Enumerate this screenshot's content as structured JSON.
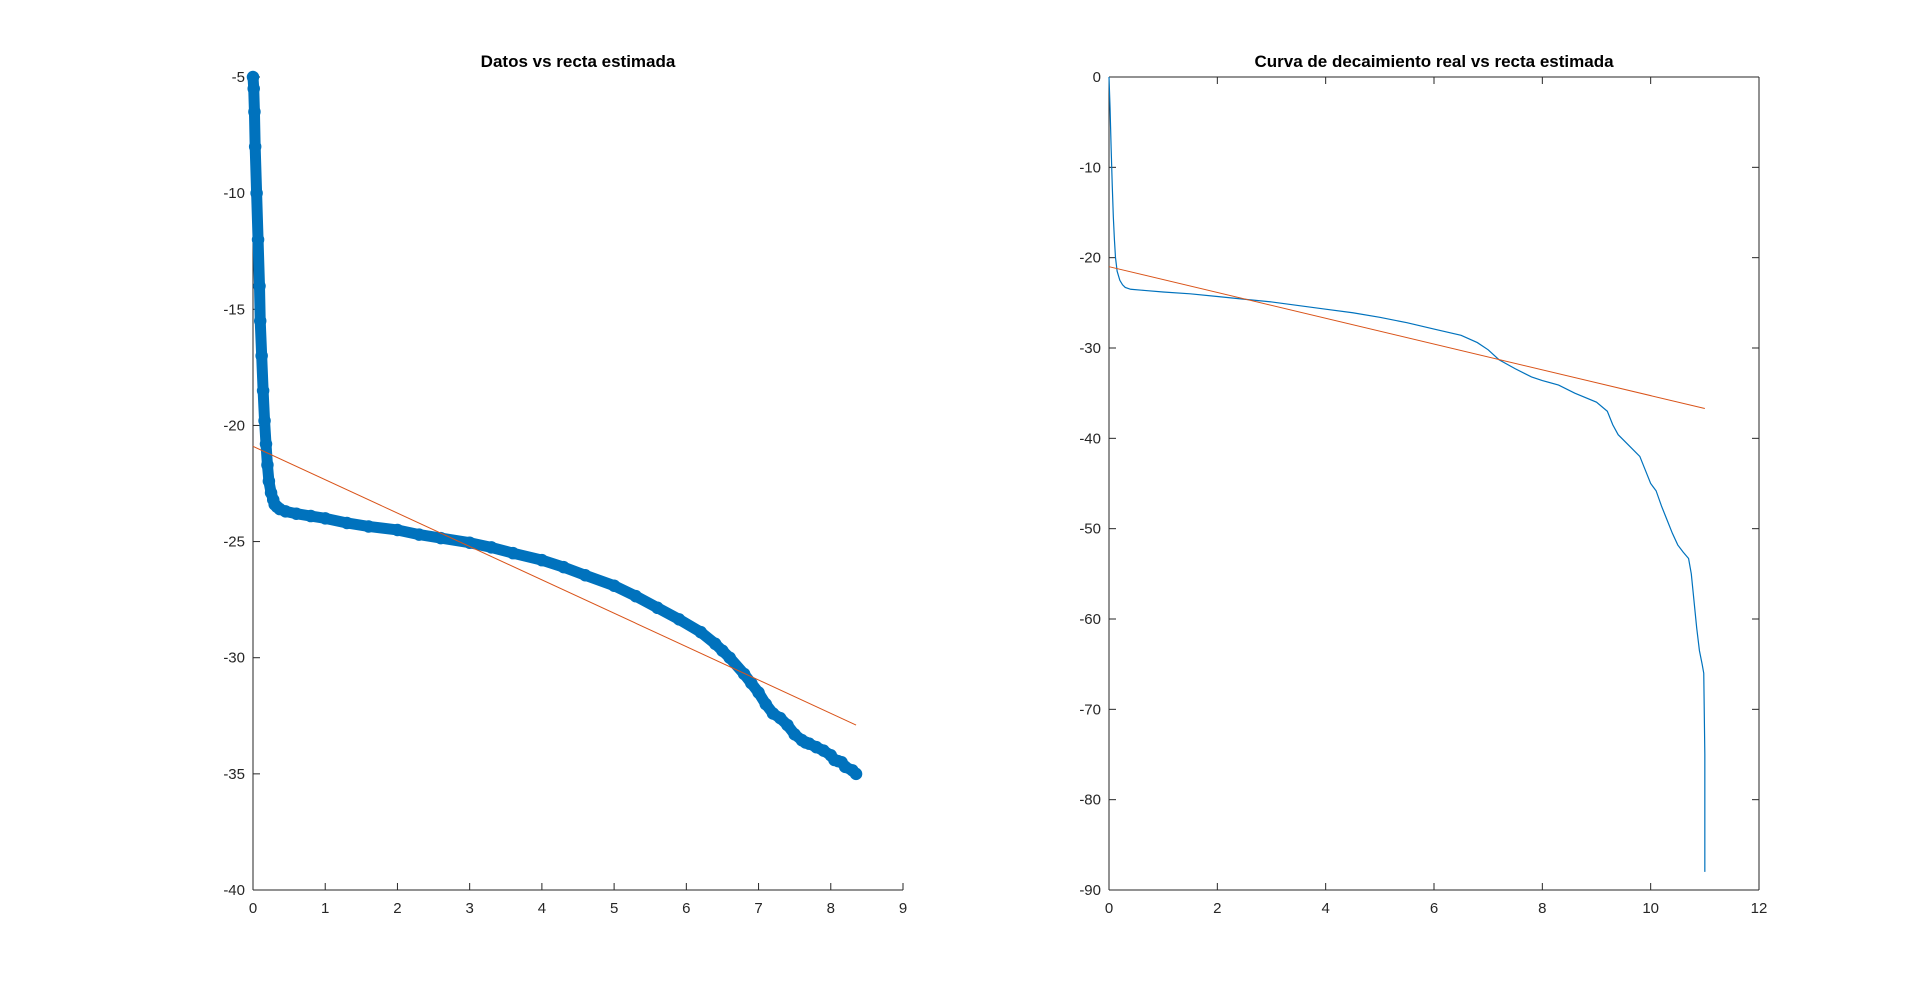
{
  "chart_data": [
    {
      "type": "scatter",
      "title": "Datos vs recta estimada",
      "xlabel": "",
      "ylabel": "",
      "xlim": [
        0,
        9
      ],
      "ylim": [
        -40,
        -5
      ],
      "xticks": [
        "0",
        "1",
        "2",
        "3",
        "4",
        "5",
        "6",
        "7",
        "8",
        "9"
      ],
      "yticks": [
        "-40",
        "-35",
        "-30",
        "-25",
        "-20",
        "-15",
        "-10",
        "-5"
      ],
      "box": false,
      "grid": false,
      "colors": {
        "data": "#0072BD",
        "fit": "#D95319"
      },
      "series": [
        {
          "kind": "markers",
          "x": [
            0.0,
            0.01,
            0.02,
            0.03,
            0.05,
            0.07,
            0.09,
            0.1,
            0.12,
            0.14,
            0.16,
            0.18,
            0.2,
            0.22,
            0.25,
            0.28,
            0.3,
            0.33,
            0.37,
            0.45,
            0.6,
            0.8,
            1.0,
            1.3,
            1.6,
            2.0,
            2.3,
            2.6,
            3.0,
            3.3,
            3.6,
            4.0,
            4.3,
            4.6,
            5.0,
            5.3,
            5.6,
            5.9,
            6.2,
            6.4,
            6.5,
            6.6,
            6.8,
            6.9,
            7.0,
            7.1,
            7.2,
            7.3,
            7.4,
            7.5,
            7.6,
            7.65,
            7.7,
            7.8,
            7.9,
            8.0,
            8.05,
            8.1,
            8.15,
            8.2,
            8.3,
            8.35
          ],
          "y": [
            -5.0,
            -5.5,
            -6.5,
            -8.0,
            -10.0,
            -12.0,
            -14.0,
            -15.5,
            -17.0,
            -18.5,
            -19.8,
            -20.8,
            -21.7,
            -22.4,
            -22.9,
            -23.2,
            -23.4,
            -23.5,
            -23.6,
            -23.7,
            -23.8,
            -23.9,
            -24.0,
            -24.2,
            -24.35,
            -24.5,
            -24.7,
            -24.85,
            -25.05,
            -25.25,
            -25.5,
            -25.8,
            -26.1,
            -26.45,
            -26.9,
            -27.35,
            -27.85,
            -28.35,
            -28.9,
            -29.4,
            -29.7,
            -30.0,
            -30.7,
            -31.1,
            -31.5,
            -32.0,
            -32.4,
            -32.6,
            -32.9,
            -33.3,
            -33.55,
            -33.65,
            -33.7,
            -33.85,
            -34.0,
            -34.2,
            -34.4,
            -34.45,
            -34.5,
            -34.7,
            -34.85,
            -35.0
          ]
        },
        {
          "kind": "line",
          "x": [
            0.0,
            8.35
          ],
          "y": [
            -20.9,
            -32.9
          ]
        }
      ]
    },
    {
      "type": "line",
      "title": "Curva de decaimiento real vs recta estimada",
      "xlabel": "",
      "ylabel": "",
      "xlim": [
        0,
        12
      ],
      "ylim": [
        -90,
        0
      ],
      "xticks": [
        "0",
        "2",
        "4",
        "6",
        "8",
        "10",
        "12"
      ],
      "yticks": [
        "-90",
        "-80",
        "-70",
        "-60",
        "-50",
        "-40",
        "-30",
        "-20",
        "-10",
        "0"
      ],
      "box": true,
      "grid": false,
      "colors": {
        "data": "#0072BD",
        "fit": "#D95319"
      },
      "series": [
        {
          "kind": "line",
          "x": [
            0.0,
            0.02,
            0.04,
            0.06,
            0.08,
            0.1,
            0.12,
            0.15,
            0.2,
            0.25,
            0.3,
            0.4,
            0.6,
            1.0,
            1.5,
            2.0,
            2.5,
            3.0,
            3.5,
            4.0,
            4.5,
            5.0,
            5.5,
            6.0,
            6.5,
            6.8,
            7.0,
            7.2,
            7.5,
            7.8,
            8.0,
            8.3,
            8.6,
            9.0,
            9.2,
            9.3,
            9.4,
            9.6,
            9.8,
            9.9,
            10.0,
            10.1,
            10.2,
            10.3,
            10.4,
            10.5,
            10.6,
            10.7,
            10.75,
            10.8,
            10.85,
            10.9,
            10.95,
            10.98,
            11.0,
            11.0
          ],
          "y": [
            0.0,
            -3.5,
            -8.0,
            -12.0,
            -15.5,
            -18.0,
            -20.0,
            -21.5,
            -22.5,
            -23.0,
            -23.3,
            -23.5,
            -23.6,
            -23.8,
            -24.0,
            -24.3,
            -24.6,
            -24.9,
            -25.3,
            -25.7,
            -26.1,
            -26.6,
            -27.2,
            -27.9,
            -28.6,
            -29.4,
            -30.2,
            -31.3,
            -32.3,
            -33.2,
            -33.6,
            -34.1,
            -35.0,
            -36.0,
            -37.0,
            -38.5,
            -39.6,
            -40.8,
            -42.0,
            -43.5,
            -45.0,
            -45.8,
            -47.5,
            -49.0,
            -50.5,
            -51.8,
            -52.6,
            -53.3,
            -55.0,
            -58.0,
            -61.0,
            -63.5,
            -65.0,
            -66.0,
            -75.0,
            -88.0
          ]
        },
        {
          "kind": "line",
          "x": [
            0.0,
            11.0
          ],
          "y": [
            -21.0,
            -36.7
          ]
        }
      ]
    }
  ]
}
